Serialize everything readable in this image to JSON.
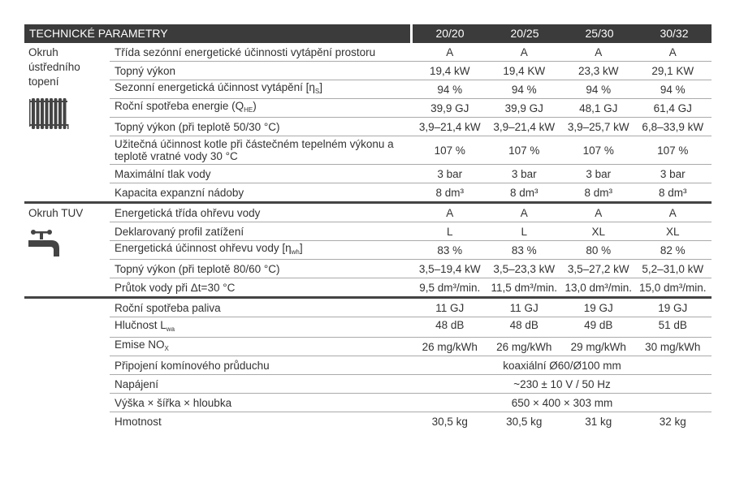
{
  "header": {
    "title": "TECHNICKÉ PARAMETRY",
    "columns": [
      "20/20",
      "20/25",
      "25/30",
      "30/32"
    ]
  },
  "sections": [
    {
      "label": "Okruh ústředního topení",
      "icon": "radiator-icon",
      "rows": [
        {
          "label": "Třída sezónní energetické účinnosti vytápění prostoru",
          "values": [
            "A",
            "A",
            "A",
            "A"
          ]
        },
        {
          "label": "Topný výkon",
          "values": [
            "19,4 kW",
            "19,4 KW",
            "23,3 kW",
            "29,1 KW"
          ]
        },
        {
          "label": "Sezonní energetická účinnost vytápění [η",
          "sub": "S",
          "after": "]",
          "values": [
            "94 %",
            "94 %",
            "94 %",
            "94 %"
          ]
        },
        {
          "label": "Roční spotřeba energie (Q",
          "sub": "HE",
          "after": ")",
          "values": [
            "39,9 GJ",
            "39,9 GJ",
            "48,1 GJ",
            "61,4 GJ"
          ]
        },
        {
          "label": "Topný výkon (při teplotě 50/30 °C)",
          "values": [
            "3,9–21,4 kW",
            "3,9–21,4 kW",
            "3,9–25,7 kW",
            "6,8–33,9 kW"
          ]
        },
        {
          "label": "Užitečná účinnost kotle při částečném tepelném výkonu a teplotě vratné vody 30 °C",
          "tall": true,
          "values": [
            "107 %",
            "107 %",
            "107 %",
            "107 %"
          ]
        },
        {
          "label": "Maximální tlak vody",
          "values": [
            "3 bar",
            "3 bar",
            "3 bar",
            "3 bar"
          ]
        },
        {
          "label": "Kapacita expanzní nádoby",
          "values": [
            "8 dm³",
            "8 dm³",
            "8 dm³",
            "8 dm³"
          ]
        }
      ]
    },
    {
      "label": "Okruh TUV",
      "icon": "water-tap-icon",
      "rows": [
        {
          "label": "Energetická třída ohřevu vody",
          "values": [
            "A",
            "A",
            "A",
            "A"
          ]
        },
        {
          "label": "Deklarovaný profil zatížení",
          "values": [
            "L",
            "L",
            "XL",
            "XL"
          ]
        },
        {
          "label": "Energetická účinnost ohřevu vody [η",
          "sub": "wh",
          "after": "]",
          "values": [
            "83 %",
            "83 %",
            "80 %",
            "82 %"
          ]
        },
        {
          "label": "Topný výkon (při teplotě 80/60 °C)",
          "values": [
            "3,5–19,4 kW",
            "3,5–23,3 kW",
            "3,5–27,2 kW",
            "5,2–31,0 kW"
          ]
        },
        {
          "label": "Průtok vody při Δt=30 °C",
          "values": [
            "9,5 dm³/min.",
            "11,5 dm³/min.",
            "13,0 dm³/min.",
            "15,0 dm³/min."
          ]
        }
      ]
    },
    {
      "label": "",
      "rows": [
        {
          "label": "Roční spotřeba paliva",
          "values": [
            "11 GJ",
            "11 GJ",
            "19 GJ",
            "19 GJ"
          ]
        },
        {
          "label": "Hlučnost L",
          "sub": "wa",
          "after": "",
          "tall2": true,
          "values": [
            "48 dB",
            "48 dB",
            "49 dB",
            "51 dB"
          ]
        },
        {
          "label": "Emise NO",
          "sub": "X",
          "after": "",
          "values": [
            "26 mg/kWh",
            "26 mg/kWh",
            "29 mg/kWh",
            "30 mg/kWh"
          ]
        },
        {
          "label": "Připojení komínového průduchu",
          "span": "koaxiální Ø60/Ø100 mm"
        },
        {
          "label": "Napájení",
          "span": "~230 ± 10 V / 50 Hz"
        },
        {
          "label": "Výška × šířka × hloubka",
          "span": "650 × 400 × 303 mm"
        },
        {
          "label": "Hmotnost",
          "values": [
            "30,5 kg",
            "30,5 kg",
            "31 kg",
            "32 kg"
          ]
        }
      ]
    }
  ]
}
